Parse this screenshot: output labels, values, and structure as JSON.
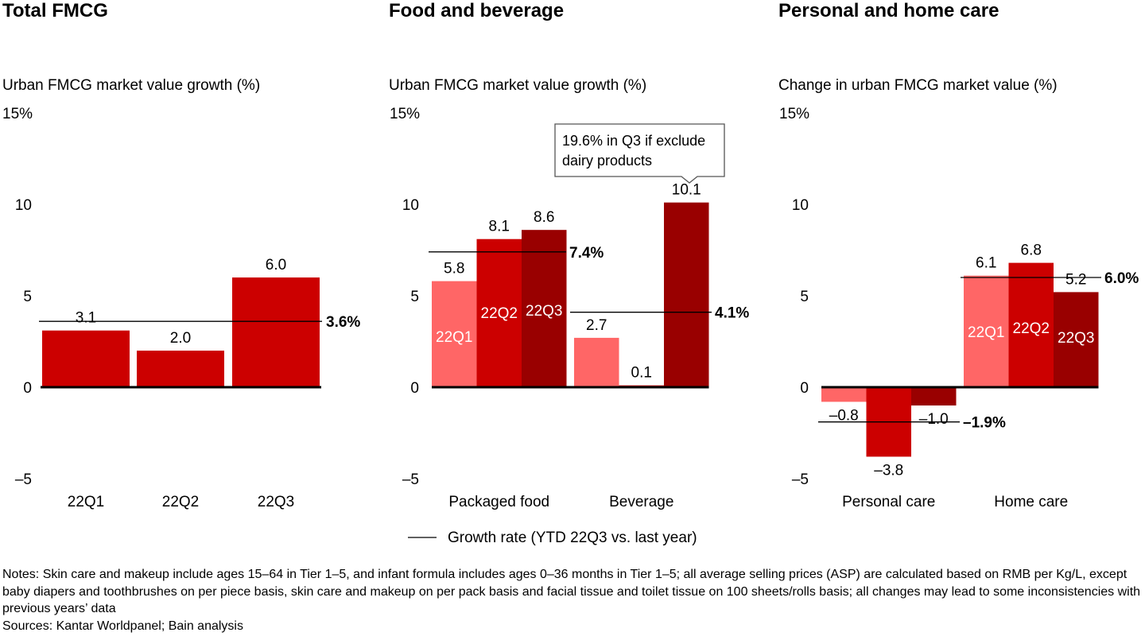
{
  "colors": {
    "q1": "#FF6666",
    "q2": "#CC0000",
    "q3": "#990000",
    "total": "#CC0000",
    "line": "#000000"
  },
  "chart_data": [
    {
      "type": "bar",
      "title": "Total FMCG",
      "ylabel": "Urban FMCG market value growth (%)",
      "ylim": [
        -5,
        15
      ],
      "yticks": [
        "15%",
        "10",
        "5",
        "0",
        "–5"
      ],
      "categories": [
        "22Q1",
        "22Q2",
        "22Q3"
      ],
      "values": [
        3.1,
        2.0,
        6.0
      ],
      "value_labels": [
        "3.1",
        "2.0",
        "6.0"
      ],
      "reference_lines": [
        {
          "value": 3.6,
          "label": "3.6%"
        }
      ]
    },
    {
      "type": "bar",
      "title": "Food and beverage",
      "ylabel": "Urban FMCG market value growth (%)",
      "ylim": [
        -5,
        15
      ],
      "yticks": [
        "15%",
        "10",
        "5",
        "0",
        "–5"
      ],
      "categories": [
        "Packaged food",
        "Beverage"
      ],
      "series": [
        {
          "name": "22Q1",
          "values": [
            5.8,
            2.7
          ],
          "value_labels": [
            "5.8",
            "2.7"
          ]
        },
        {
          "name": "22Q2",
          "values": [
            8.1,
            0.1
          ],
          "value_labels": [
            "8.1",
            "0.1"
          ]
        },
        {
          "name": "22Q3",
          "values": [
            8.6,
            10.1
          ],
          "value_labels": [
            "8.6",
            "10.1"
          ]
        }
      ],
      "reference_lines": [
        {
          "category": "Packaged food",
          "value": 7.4,
          "label": "7.4%"
        },
        {
          "category": "Beverage",
          "value": 4.1,
          "label": "4.1%"
        }
      ],
      "annotation": {
        "lines": [
          "19.6% in Q3 if exclude",
          "dairy products"
        ],
        "target": "Beverage 22Q3"
      }
    },
    {
      "type": "bar",
      "title": "Personal and home care",
      "ylabel": "Change in urban FMCG market value (%)",
      "ylim": [
        -5,
        15
      ],
      "yticks": [
        "15%",
        "10",
        "5",
        "0",
        "–5"
      ],
      "categories": [
        "Personal care",
        "Home care"
      ],
      "series": [
        {
          "name": "22Q1",
          "values": [
            -0.8,
            6.1
          ],
          "value_labels": [
            "–0.8",
            "6.1"
          ]
        },
        {
          "name": "22Q2",
          "values": [
            -3.8,
            6.8
          ],
          "value_labels": [
            "–3.8",
            "6.8"
          ]
        },
        {
          "name": "22Q3",
          "values": [
            -1.0,
            5.2
          ],
          "value_labels": [
            "–1.0",
            "5.2"
          ]
        }
      ],
      "reference_lines": [
        {
          "category": "Personal care",
          "value": -1.9,
          "label": "–1.9%"
        },
        {
          "category": "Home care",
          "value": 6.0,
          "label": "6.0%"
        }
      ]
    }
  ],
  "legend": {
    "label": "Growth rate (YTD 22Q3 vs. last year)",
    "placement": "bottom-center"
  },
  "notes": [
    "Notes: Skin care and makeup include ages 15–64 in Tier 1–5, and infant formula includes ages 0–36 months in Tier 1–5; all average selling prices (ASP) are calculated based on RMB per Kg/L, except baby diapers and toothbrushes on per piece basis, skin care and makeup on per pack basis and facial tissue and toilet tissue on 100 sheets/rolls basis; all changes may lead to some inconsistencies with previous years’ data",
    "Sources: Kantar Worldpanel; Bain analysis"
  ]
}
